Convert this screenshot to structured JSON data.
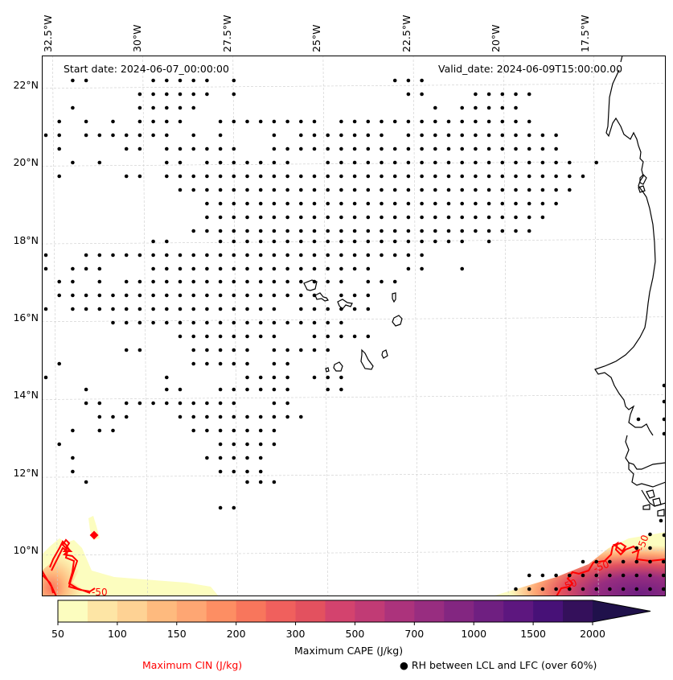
{
  "map": {
    "start_date_label": "Start date: 2024-06-07_00:00:00",
    "valid_date_label": "Valid_date: 2024-06-09T15:00:00.00",
    "extent": {
      "lon_min": -32.8,
      "lon_max": -15.5,
      "lat_min": 8.9,
      "lat_max": 22.8
    },
    "longitude_ticks": [
      {
        "value": -32.5,
        "label": "32.5°W"
      },
      {
        "value": -30.0,
        "label": "30°W"
      },
      {
        "value": -27.5,
        "label": "27.5°W"
      },
      {
        "value": -25.0,
        "label": "25°W"
      },
      {
        "value": -22.5,
        "label": "22.5°W"
      },
      {
        "value": -20.0,
        "label": "20°W"
      },
      {
        "value": -17.5,
        "label": "17.5°W"
      }
    ],
    "latitude_ticks": [
      {
        "value": 22,
        "label": "22°N"
      },
      {
        "value": 20,
        "label": "20°N"
      },
      {
        "value": 18,
        "label": "18°N"
      },
      {
        "value": 16,
        "label": "16°N"
      },
      {
        "value": 14,
        "label": "14°N"
      },
      {
        "value": 12,
        "label": "12°N"
      },
      {
        "value": 10,
        "label": "10°N"
      }
    ],
    "cin_contour_label": "-50",
    "colors": {
      "coastline": "#000000",
      "gridline": "#cccccc",
      "cin_contour": "#ff0000",
      "rh_marker": "#000000"
    }
  },
  "colorbar": {
    "label": "Maximum CAPE (J/kg)",
    "levels": [
      50,
      75,
      100,
      125,
      150,
      175,
      200,
      250,
      300,
      400,
      500,
      600,
      700,
      800,
      1000,
      1250,
      1500,
      1750,
      2000
    ],
    "tick_labels": [
      "50",
      "100",
      "150",
      "200",
      "300",
      "500",
      "700",
      "1000",
      "1500",
      "2000"
    ],
    "extend": "max",
    "colors": [
      "#fcfdbf",
      "#fde5a5",
      "#fed294",
      "#feba7e",
      "#fea673",
      "#fd8e63",
      "#f8765c",
      "#f0605d",
      "#e3515f",
      "#d3436e",
      "#c13b75",
      "#ac337c",
      "#982d80",
      "#832681",
      "#6f1f81",
      "#5d177f",
      "#471177",
      "#34105b",
      "#20114b"
    ]
  },
  "legend": {
    "cin_label": "Maximum CIN (J/kg)",
    "cin_color": "#ff0000",
    "rh_label": "● RH between LCL and LFC (over 60%)"
  }
}
